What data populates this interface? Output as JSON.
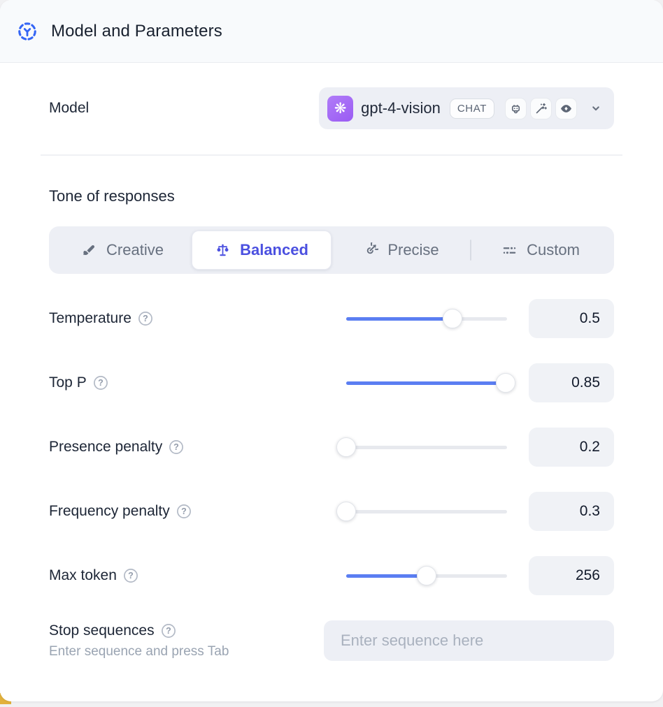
{
  "header": {
    "title": "Model and Parameters",
    "icon": "converge-arrows-icon"
  },
  "model": {
    "label": "Model",
    "selected_name": "gpt-4-vision",
    "provider_icon": "openai-logo",
    "type_badge": "CHAT",
    "capability_icons": [
      "robot-icon",
      "magic-wand-icon",
      "vision-eye-icon"
    ]
  },
  "tone": {
    "label": "Tone of responses",
    "options": [
      {
        "label": "Creative",
        "icon": "paintbrush-icon",
        "selected": false
      },
      {
        "label": "Balanced",
        "icon": "balance-scale-icon",
        "selected": true
      },
      {
        "label": "Precise",
        "icon": "target-arrow-icon",
        "selected": false
      },
      {
        "label": "Custom",
        "icon": "sliders-icon",
        "selected": false
      }
    ]
  },
  "parameters": [
    {
      "label": "Temperature",
      "value": "0.5",
      "slider_percent": 66
    },
    {
      "label": "Top P",
      "value": "0.85",
      "slider_percent": 99
    },
    {
      "label": "Presence penalty",
      "value": "0.2",
      "slider_percent": 0
    },
    {
      "label": "Frequency penalty",
      "value": "0.3",
      "slider_percent": 0
    },
    {
      "label": "Max token",
      "value": "256",
      "slider_percent": 50
    }
  ],
  "stop_sequences": {
    "label": "Stop sequences",
    "hint": "Enter sequence and press Tab",
    "placeholder": "Enter sequence here"
  },
  "colors": {
    "accent_blue": "#5b7ef2",
    "selected_tone_text": "#4b50e0",
    "openai_purple": "#a066f6",
    "header_bg": "#f8fafc",
    "control_bg": "#edeff5"
  }
}
